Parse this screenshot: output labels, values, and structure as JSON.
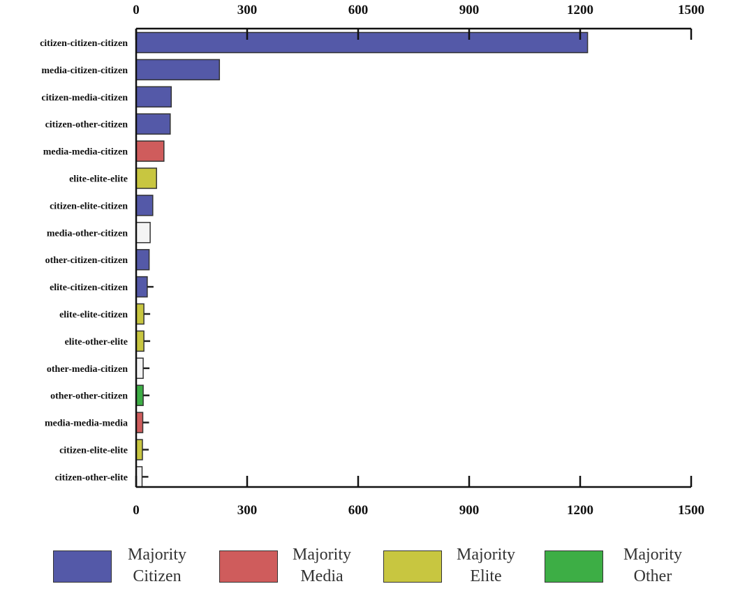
{
  "chart_data": {
    "type": "bar",
    "orientation": "horizontal",
    "title": "",
    "xlabel": "",
    "ylabel": "",
    "xlim": [
      0,
      1500
    ],
    "x_ticks": [
      "0",
      "300",
      "600",
      "900",
      "1200",
      "1500"
    ],
    "grid": false,
    "legend_placement": "bottom",
    "categories": [
      "citizen-citizen-citizen",
      "media-citizen-citizen",
      "citizen-media-citizen",
      "citizen-other-citizen",
      "media-media-citizen",
      "elite-elite-elite",
      "citizen-elite-citizen",
      "media-other-citizen",
      "other-citizen-citizen",
      "elite-citizen-citizen",
      "elite-elite-citizen",
      "elite-other-elite",
      "other-media-citizen",
      "other-other-citizen",
      "media-media-media",
      "citizen-elite-elite",
      "citizen-other-elite"
    ],
    "values": [
      1220,
      225,
      95,
      92,
      75,
      55,
      45,
      38,
      35,
      30,
      21,
      21,
      19,
      19,
      18,
      17,
      16
    ],
    "bar_groups": [
      "citizen",
      "citizen",
      "citizen",
      "citizen",
      "media",
      "elite",
      "citizen",
      "none",
      "citizen",
      "citizen",
      "elite",
      "elite",
      "none",
      "other",
      "media",
      "elite",
      "none"
    ],
    "group_colors": {
      "citizen": "#5459a8",
      "media": "#cf5c5c",
      "elite": "#c8c640",
      "other": "#3dae45",
      "none": "#f4f4f4"
    },
    "legend": [
      {
        "group": "citizen",
        "line1": "Majority",
        "line2": "Citizen"
      },
      {
        "group": "media",
        "line1": "Majority",
        "line2": "Media"
      },
      {
        "group": "elite",
        "line1": "Majority",
        "line2": "Elite"
      },
      {
        "group": "other",
        "line1": "Majority",
        "line2": "Other"
      }
    ]
  }
}
